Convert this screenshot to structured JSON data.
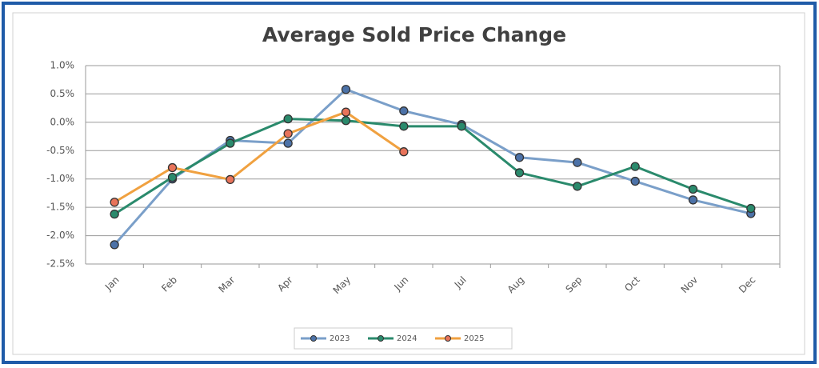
{
  "chart_data": {
    "type": "line",
    "title": "Average Sold Price Change",
    "categories": [
      "Jan",
      "Feb",
      "Mar",
      "Apr",
      "May",
      "Jun",
      "Jul",
      "Aug",
      "Sep",
      "Oct",
      "Nov",
      "Dec"
    ],
    "series": [
      {
        "name": "2023",
        "color": "#7a9fc9",
        "marker_color": "#4c72a8",
        "values": [
          -2.16,
          -1.0,
          -0.32,
          -0.37,
          0.58,
          0.2,
          -0.04,
          -0.62,
          -0.71,
          -1.04,
          -1.37,
          -1.61
        ]
      },
      {
        "name": "2024",
        "color": "#2a8a6c",
        "marker_color": "#2a8a6c",
        "values": [
          -1.62,
          -0.97,
          -0.37,
          0.06,
          0.03,
          -0.07,
          -0.07,
          -0.89,
          -1.13,
          -0.78,
          -1.18,
          -1.52
        ]
      },
      {
        "name": "2025",
        "color": "#f0a140",
        "marker_color": "#e8735a",
        "values": [
          -1.41,
          -0.8,
          -1.01,
          -0.2,
          0.18,
          -0.52,
          null,
          null,
          null,
          null,
          null,
          null
        ]
      }
    ],
    "ylim": [
      -2.5,
      1.0
    ],
    "yticks": [
      {
        "value": -2.5,
        "label": "-2.5%"
      },
      {
        "value": -2.0,
        "label": "-2.0%"
      },
      {
        "value": -1.5,
        "label": "-1.5%"
      },
      {
        "value": -1.0,
        "label": "-1.0%"
      },
      {
        "value": -0.5,
        "label": "-0.5%"
      },
      {
        "value": 0.0,
        "label": "0.0%"
      },
      {
        "value": 0.5,
        "label": "0.5%"
      },
      {
        "value": 1.0,
        "label": "1.0%"
      }
    ],
    "grid": true,
    "legend": "bottom"
  }
}
